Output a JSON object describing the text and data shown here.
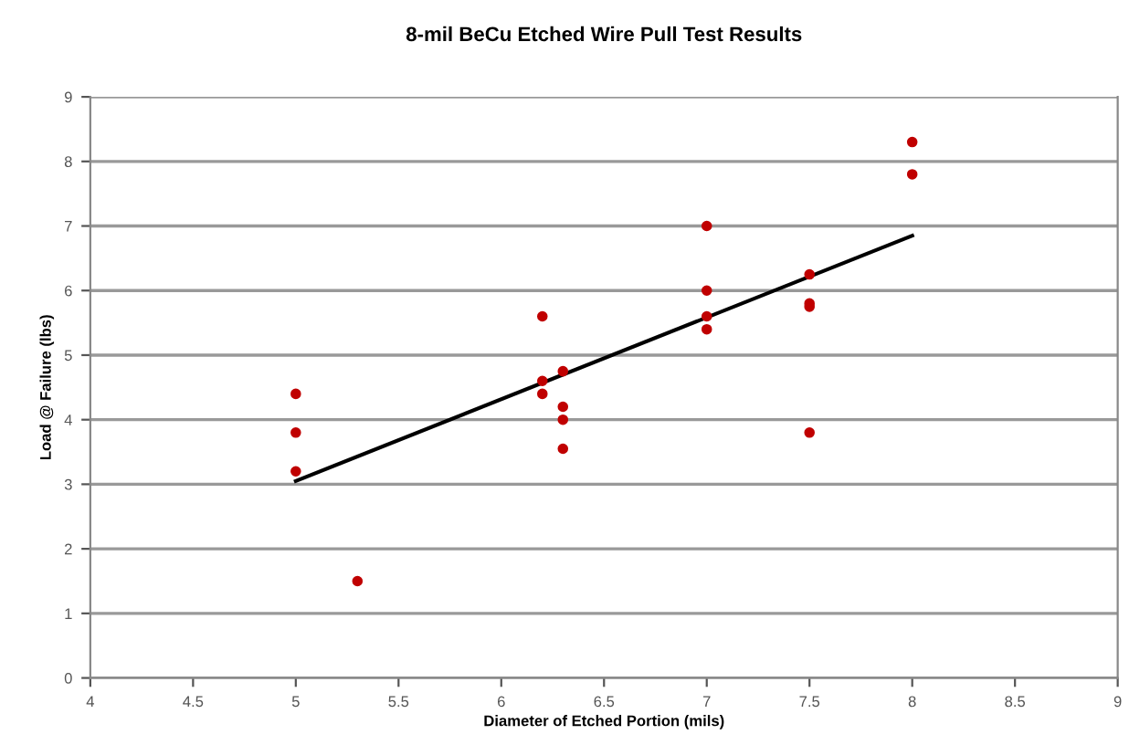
{
  "chart_data": {
    "type": "scatter",
    "title": "8-mil BeCu Etched Wire Pull Test Results",
    "xlabel": "Diameter of Etched Portion (mils)",
    "ylabel": "Load @ Failure (lbs)",
    "xlim": [
      4,
      9
    ],
    "xticks": [
      4,
      4.5,
      5,
      5.5,
      6,
      6.5,
      7,
      7.5,
      8,
      8.5,
      9
    ],
    "ylim": [
      0,
      9
    ],
    "yticks": [
      0,
      1,
      2,
      3,
      4,
      5,
      6,
      7,
      8,
      9
    ],
    "grid": "y",
    "series": [
      {
        "marker": "circle",
        "color": "#c00000",
        "x": [
          5,
          5,
          5,
          5.3,
          6.2,
          6.2,
          6.2,
          6.3,
          6.3,
          6.3,
          6.3,
          7,
          7,
          7,
          7,
          7.5,
          7.5,
          7.5,
          7.5,
          8,
          8
        ],
        "values": [
          4.4,
          3.8,
          3.2,
          1.5,
          5.6,
          4.6,
          4.4,
          4.75,
          4.2,
          4.0,
          3.55,
          7.0,
          6.0,
          5.6,
          5.4,
          6.25,
          5.8,
          5.75,
          3.8,
          8.3,
          7.8
        ]
      },
      {
        "type": "line",
        "marker": "none",
        "color": "#000000",
        "x": [
          5,
          8
        ],
        "values": [
          3.05,
          6.85
        ]
      }
    ]
  }
}
